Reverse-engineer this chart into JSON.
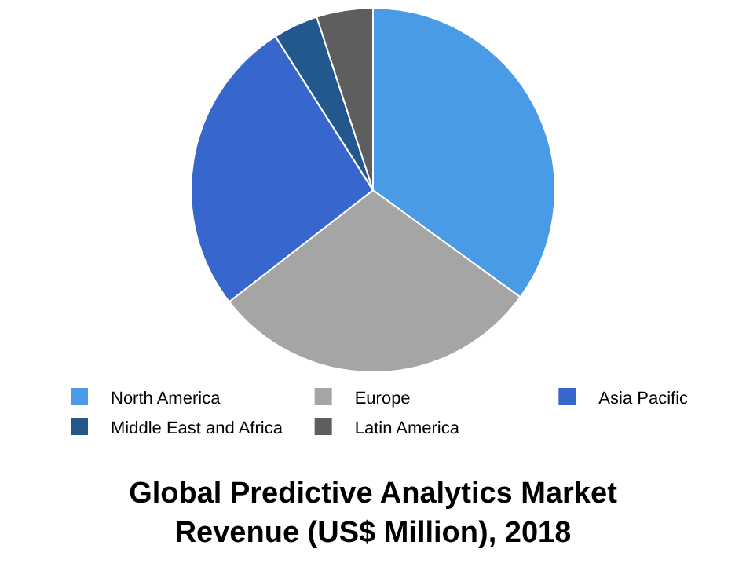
{
  "chart_data": {
    "type": "pie",
    "title": "Global Predictive Analytics Market\nRevenue (US$ Million), 2018",
    "categories": [
      "North America",
      "Europe",
      "Asia Pacific",
      "Middle East and Africa",
      "Latin America"
    ],
    "values": [
      35,
      29.5,
      26.5,
      4,
      5
    ],
    "colors": [
      "#4a9be6",
      "#a5a5a5",
      "#3767cc",
      "#23588f",
      "#5e5e5e"
    ],
    "legend": "bottom"
  }
}
